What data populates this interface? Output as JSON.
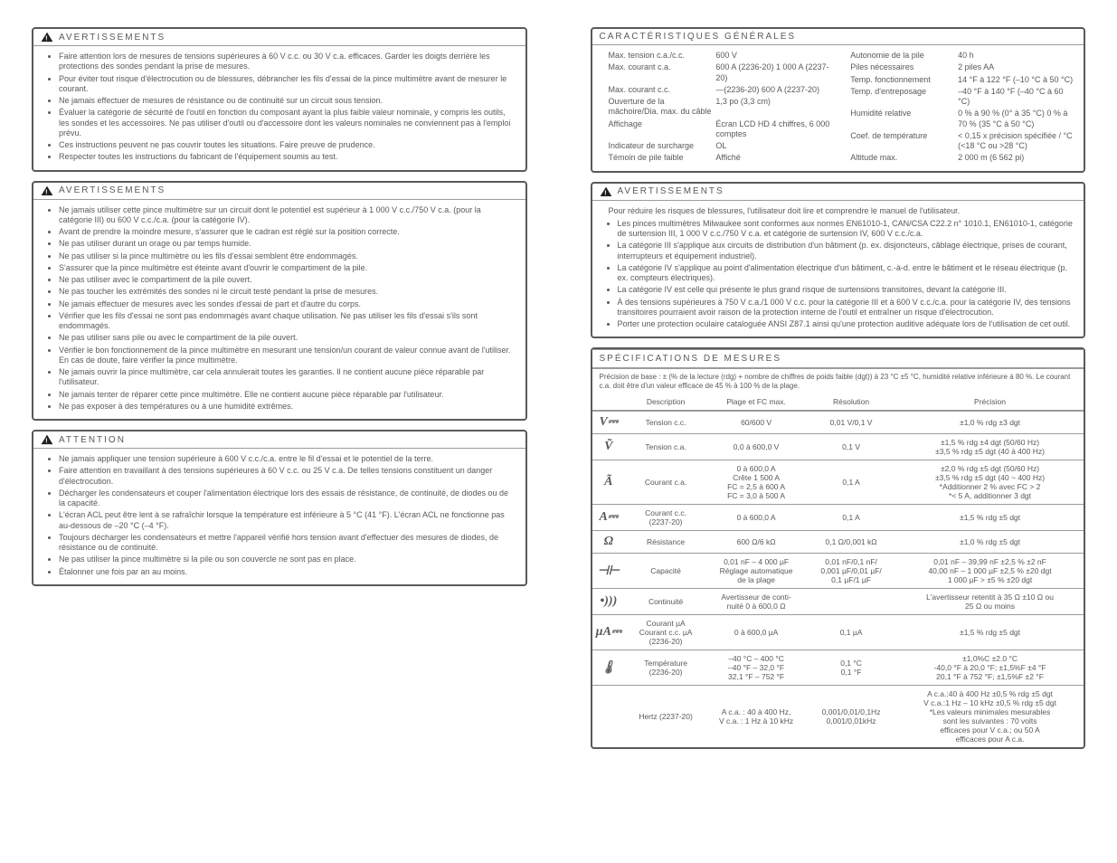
{
  "left": {
    "box1": {
      "title": "AVERTISSEMENTS",
      "items": [
        "Faire attention lors de mesures de tensions supérieures à 60 V c.c. ou 30 V c.a. efficaces. Garder les doigts derrière les protections des sondes pendant la prise de mesures.",
        "Pour éviter tout risque d'électrocution ou de blessures, débrancher les fils d'essai de la pince multimètre avant de mesurer le courant.",
        "Ne jamais effectuer de mesures de résistance ou de continuité sur un circuit sous tension.",
        "Évaluer la catégorie de sécurité de l'outil en fonction du composant ayant la plus faible valeur nominale, y compris les outils, les sondes et les accessoires. Ne pas utiliser d'outil ou d'accessoire dont les valeurs nominales ne conviennent pas à l'emploi prévu.",
        "Ces instructions peuvent ne pas couvrir toutes les situations. Faire preuve de prudence.",
        "Respecter toutes les instructions du fabricant de l'équipement soumis au test."
      ]
    },
    "box2": {
      "title": "AVERTISSEMENTS",
      "items": [
        "Ne jamais utiliser cette pince multimètre sur un circuit dont le potentiel est supérieur à 1 000 V c.c./750 V c.a. (pour la catégorie III) ou 600 V c.c./c.a. (pour la catégorie IV).",
        "Avant de prendre la moindre mesure, s'assurer que le cadran est réglé sur la position correcte.",
        "Ne pas utiliser durant un orage ou par temps humide.",
        "Ne pas utiliser si la pince multimètre ou les fils d'essai semblent être endommagés.",
        "S'assurer que la pince multimètre est éteinte avant d'ouvrir le compartiment de la pile.",
        "Ne pas utiliser avec le compartiment de la pile ouvert.",
        "Ne pas toucher les extrémités des sondes ni le circuit testé pendant la prise de mesures.",
        "Ne jamais effectuer de mesures avec les sondes d'essai de part et d'autre du corps.",
        "Vérifier que les fils d'essai ne sont pas endommagés avant chaque utilisation. Ne pas utiliser les fils d'essai s'ils sont endommagés.",
        "Ne pas utiliser sans pile ou avec le compartiment de la pile ouvert.",
        "Vérifier le bon fonctionnement de la pince multimètre en mesurant une tension/un courant de valeur connue avant de l'utiliser. En cas de doute, faire vérifier la pince multimètre.",
        "Ne jamais ouvrir la pince multimètre, car cela annulerait toutes les garanties. Il ne contient aucune pièce réparable par l'utilisateur.",
        "Ne jamais tenter de réparer cette pince multimètre. Elle ne contient aucune pièce réparable par l'utilisateur.",
        "Ne pas exposer à des températures ou à une humidité extrêmes."
      ]
    },
    "box3": {
      "title": "ATTENTION",
      "items": [
        "Ne jamais appliquer une tension supérieure à 600 V c.c./c.a. entre le fil d'essai et le potentiel de la terre.",
        "Faire attention en travaillant à des tensions supérieures à 60 V c.c. ou 25 V c.a. De telles tensions constituent un danger d'électrocution.",
        "Décharger les condensateurs et couper l'alimentation électrique lors des essais de résistance, de continuité, de diodes ou de la capacité.",
        "L'écran ACL peut être lent à se rafraîchir lorsque la température est inférieure à 5 °C (41 °F). L'écran ACL ne fonctionne pas au-dessous de –20 °C (–4 °F).",
        "Toujours décharger les condensateurs et mettre l'appareil vérifié hors tension avant d'effectuer des mesures de diodes, de résistance ou de continuité.",
        "Ne pas utiliser la pince multimètre si la pile ou son couvercle ne sont pas en place.",
        "Étalonner une fois par an au moins."
      ]
    }
  },
  "right": {
    "box_top": {
      "title": "CARACTÉRISTIQUES GÉNÉRALES",
      "cols": {
        "a": [
          [
            "Max. tension c.a./c.c.",
            "600 V"
          ],
          [
            "Max. courant c.a.",
            "600 A (2236-20)  1 000 A (2237-20)"
          ],
          [
            "Max. courant c.c.",
            "—(2236-20)  600 A (2237-20)"
          ],
          [
            "Ouverture de la mâchoire/Dia. max. du câble",
            "1,3 po (3,3 cm)"
          ],
          [
            "Affichage",
            "Écran LCD HD 4 chiffres, 6 000 comptes"
          ],
          [
            "Indicateur de surcharge",
            "OL"
          ],
          [
            "Témoin de pile faible",
            "Affiché"
          ]
        ],
        "b": [
          [
            "Autonomie de la pile",
            "40 h"
          ],
          [
            "Piles nécessaires",
            "2 piles AA"
          ],
          [
            "Temp. fonctionnement",
            "14 °F à 122 °F (–10 °C à 50 °C)"
          ],
          [
            "Temp. d'entreposage",
            "–40 °F à 140 °F (–40 °C à 60 °C)"
          ],
          [
            "Humidité relative",
            "0 % à 90 % (0° à 35 °C) 0 % à 70 % (35 °C à 50 °C)"
          ],
          [
            "Coef. de température",
            "< 0,15 x précision spécifiée / °C (<18 °C ou >28 °C)"
          ],
          [
            "Altitude max.",
            "2 000 m (6 562 pi)"
          ]
        ]
      }
    },
    "warn": {
      "title": "AVERTISSEMENTS",
      "pre": "Pour réduire les risques de blessures, l'utilisateur doit lire et comprendre le manuel de l'utilisateur.",
      "items": [
        "Les pinces multimètres Milwaukee sont conformes aux normes EN61010-1, CAN/CSA C22.2 n° 1010.1, EN61010-1, catégorie de surtension III, 1 000 V c.c./750 V c.a. et catégorie de surtension IV, 600 V c.c./c.a.",
        "La catégorie III s'applique aux circuits de distribution d'un bâtiment (p. ex. disjoncteurs, câblage électrique, prises de courant, interrupteurs et équipement industriel).",
        "La catégorie IV s'applique au point d'alimentation électrique d'un bâtiment, c.-à-d. entre le bâtiment et le réseau électrique (p. ex. compteurs électriques).",
        "La catégorie IV est celle qui présente le plus grand risque de surtensions transitoires, devant la catégorie III.",
        "À des tensions supérieures à 750 V c.a./1 000 V c.c. pour la catégorie III et à 600 V c.c./c.a. pour la catégorie IV, des tensions transitoires pourraient avoir raison de la protection interne de l'outil et entraîner un risque d'électrocution.",
        "Porter une protection oculaire cataloguée ANSI Z87.1 ainsi qu'une protection auditive adéquate lors de l'utilisation de cet outil."
      ]
    },
    "spec_title": "SPÉCIFICATIONS DE MESURES",
    "spec_note": "Précision de base : ± (% de la lecture (rdg) + nombre de chiffres de poids faible (dgt)) à 23 °C ±5 °C, humidité relative inférieure à 80 %. Le courant c.a. doit être d'un valeur efficace de 45 % à 100 % de la plage.",
    "spec_cols": [
      "Description",
      "Plage et FC max.",
      "Résolution",
      "Précision"
    ],
    "spec_rows": [
      {
        "sym": "V⎓",
        "desc": "Tension c.c.",
        "plage": "60/600 V",
        "res": "0,01 V/0,1 V",
        "prec": "±1,0 % rdg ±3 dgt"
      },
      {
        "sym": "Ṽ",
        "desc": "Tension c.a.",
        "plage": "0,0 à 600,0 V",
        "res": "0,1 V",
        "prec": "±1,5 % rdg ±4 dgt (50/60 Hz)\n±3,5 % rdg ±5 dgt (40 à 400 Hz)"
      },
      {
        "sym": "Ã",
        "desc": "Courant c.a.",
        "plage": "0 à 600,0 A\nCrête 1 500 A\nFC = 2,5 à 600 A\nFC = 3,0 à 500 A",
        "res": "0,1 A",
        "prec": "±2,0 % rdg ±5 dgt (50/60 Hz)\n±3,5 % rdg ±5 dgt (40 ~ 400 Hz)\n*Additionner 2 % avec FC > 2\n*< 5 A, additionner 3 dgt"
      },
      {
        "sym": "A⎓",
        "desc": "Courant c.c.\n(2237-20)",
        "plage": "0 à 600,0 A",
        "res": "0,1 A",
        "prec": "±1,5 % rdg ±5 dgt"
      },
      {
        "sym": "Ω",
        "desc": "Résistance",
        "plage": "600 Ω/6 kΩ",
        "res": "0,1 Ω/0,001 kΩ",
        "prec": "±1,0 % rdg ±5 dgt"
      },
      {
        "sym": "⊣⊢",
        "desc": "Capacité",
        "plage": "0,01 nF – 4 000 µF\nRéglage automatique\nde la plage",
        "res": "0,01 nF/0,1 nF/\n0,001 µF/0,01 µF/\n0,1 µF/1 µF",
        "prec": "0,01 nF – 39,99 nF ±2,5 % ±2 nF\n40,00 nF – 1 000 µF ±2,5 % ±20 dgt\n1 000 µF > ±5 % ±20 dgt"
      },
      {
        "sym": "•)))",
        "desc": "Continuité",
        "plage": "Avertisseur de conti-\nnuité 0 à 600,0 Ω",
        "res": "",
        "prec": "L'avertisseur retentit à 35 Ω ±10 Ω ou\n25 Ω ou moins"
      },
      {
        "sym": "µA⎓",
        "desc": "Courant µA\nCourant c.c. µA\n(2236-20)",
        "plage": "0 à 600,0 µA",
        "res": "0,1 µA",
        "prec": "±1,5 % rdg ±5 dgt"
      },
      {
        "sym": "🌡",
        "desc": "Température\n(2236-20)",
        "plage": "–40 °C – 400 °C\n–40 °F – 32,0 °F\n32,1 °F – 752 °F",
        "res": "0,1 °C\n0,1 °F",
        "prec": "±1,0%C ±2.0 °C\n-40,0 °F à 20,0 °F; ±1,5%F ±4 °F\n20,1 °F à 752 °F; ±1,5%F ±2 °F"
      },
      {
        "sym": "",
        "desc": "Hertz (2237-20)",
        "plage": "A c.a. : 40 à 400 Hz,\nV c.a. : 1 Hz à 10 kHz",
        "res": "0,001/0,01/0,1Hz\n0,001/0,01kHz",
        "prec": "A c.a.:40 à 400 Hz ±0,5 % rdg ±5 dgt\nV c.a.:1 Hz – 10 kHz ±0,5 % rdg ±5 dgt\n*Les valeurs minimales mesurables\nsont les suivantes : 70 volts\nefficaces pour V c.a.; ou 50 A\nefficaces pour A c.a."
      }
    ]
  }
}
